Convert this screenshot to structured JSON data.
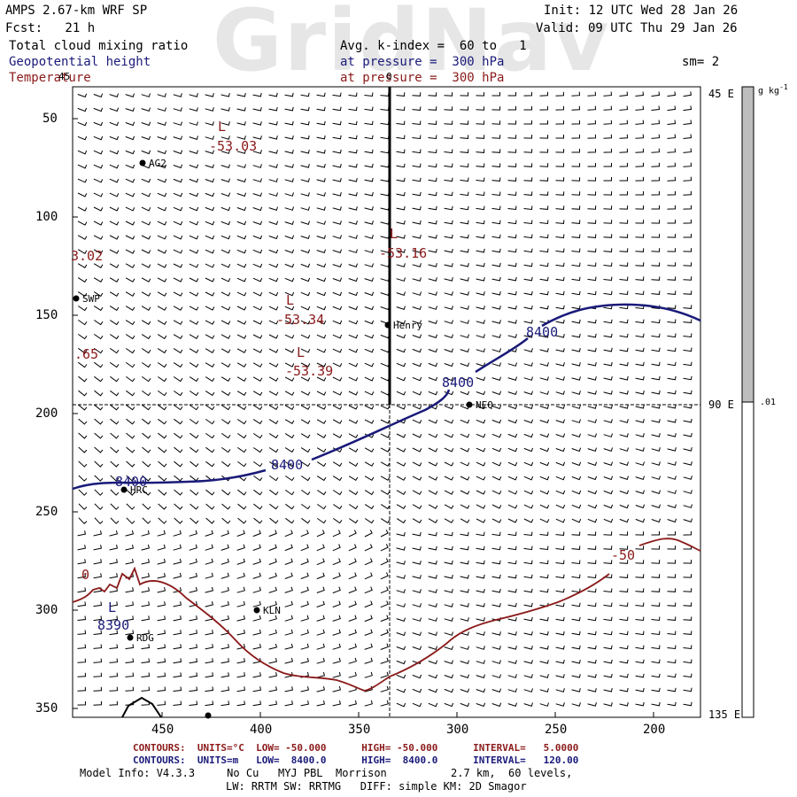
{
  "watermark": "GridNav",
  "header": {
    "model": "AMPS 2.67-km WRF SP",
    "init": "Init: 12 UTC Wed 28 Jan 26",
    "fcst": "Fcst:   21 h",
    "valid": "Valid: 09 UTC Thu 29 Jan 26",
    "field1": "Total cloud mixing ratio",
    "avg_k": "Avg. k-index =  60 to   1",
    "field2": "Geopotential height",
    "pressure2": "at pressure =  300 hPa",
    "sm": "sm= 2",
    "field3": "Temperature",
    "pressure3": "at pressure =  300 hPa"
  },
  "colors": {
    "height_contour": "#1a1a7a",
    "temperature_contour": "#8b1a1a",
    "colorbar_fill": "#bdbdbd"
  },
  "map": {
    "y_ticks": [
      "50",
      "100",
      "150",
      "200",
      "250",
      "300",
      "350"
    ],
    "x_ticks": [
      "450",
      "400",
      "350",
      "300",
      "250",
      "200"
    ],
    "right_labels": [
      "45 E",
      "90 E",
      "135 E"
    ],
    "stations": [
      {
        "name": "AG2",
        "x": 161,
        "y": 184
      },
      {
        "name": "SWP",
        "x": 86,
        "y": 337
      },
      {
        "name": "Henry",
        "x": 438,
        "y": 367
      },
      {
        "name": "NEQ",
        "x": 530,
        "y": 457
      },
      {
        "name": "HRC",
        "x": 140,
        "y": 553
      },
      {
        "name": "KLN",
        "x": 290,
        "y": 689
      },
      {
        "name": "RDG",
        "x": 147,
        "y": 720
      }
    ],
    "temp_lows": [
      {
        "symbol": "L",
        "value": "-53.03"
      },
      {
        "symbol": "L",
        "value": "-53.16"
      },
      {
        "symbol": "L",
        "value": "-53.34"
      },
      {
        "symbol": "L",
        "value": "-53.39"
      }
    ],
    "edge_values": [
      "3.02",
      ".65"
    ],
    "height_labels": [
      "8400",
      "8400",
      "8400",
      "8400"
    ],
    "height_low": {
      "symbol": "L",
      "value": "8390"
    },
    "temp_contour_label": "-50",
    "temp_edge_label": "0",
    "top_edge_label": "45",
    "top_mid_label": "0"
  },
  "colorbar": {
    "unit": "g kg",
    "unit_sup": "-1",
    "label": ".01"
  },
  "footer": {
    "red_line": "CONTOURS:  UNITS=°C  LOW= -50.000      HIGH= -50.000      INTERVAL=   5.0000",
    "blue_line": "CONTOURS:  UNITS=m   LOW=  8400.0      HIGH=  8400.0      INTERVAL=   120.00",
    "model_info": "Model Info: V4.3.3     No Cu   MYJ PBL  Morrison          2.7 km,  60 levels,",
    "physics": "LW: RRTM SW: RRTMG   DIFF: simple KM: 2D Smagor"
  }
}
